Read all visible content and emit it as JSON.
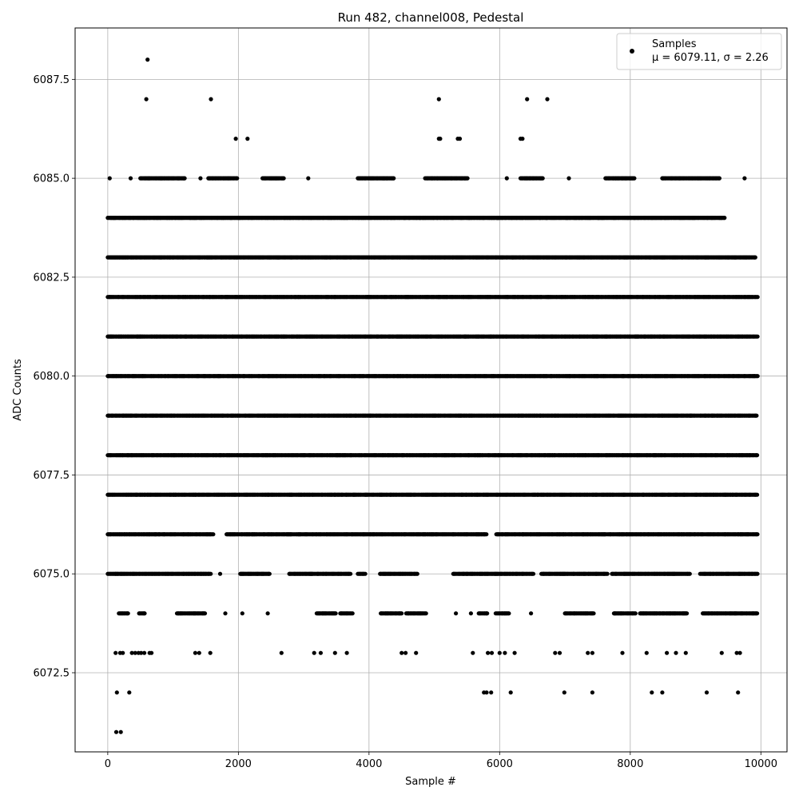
{
  "chart_data": {
    "type": "scatter",
    "title": "Run 482, channel008, Pedestal",
    "xlabel": "Sample #",
    "ylabel": "ADC Counts",
    "xlim": [
      -500,
      10400
    ],
    "ylim": [
      6070.5,
      6088.8
    ],
    "xticks": [
      0,
      2000,
      4000,
      6000,
      8000,
      10000
    ],
    "xtick_labels": [
      "0",
      "2000",
      "4000",
      "6000",
      "8000",
      "10000"
    ],
    "yticks": [
      6072.5,
      6075.0,
      6077.5,
      6080.0,
      6082.5,
      6085.0,
      6087.5
    ],
    "ytick_labels": [
      "6072.5",
      "6075.0",
      "6077.5",
      "6080.0",
      "6082.5",
      "6085.0",
      "6087.5"
    ],
    "grid": true,
    "legend_position": "top-right",
    "marker_color": "#000000",
    "series": [
      {
        "name": "Samples",
        "stats_label": "μ = 6079.11, σ = 2.26",
        "x_range": [
          0,
          9930
        ],
        "level_coverage": [
          {
            "y": 6071,
            "x": [
              130,
              200
            ]
          },
          {
            "y": 6072,
            "x": [
              140,
              330,
              5760,
              5800,
              5870,
              6170,
              6990,
              7420,
              8330,
              8490,
              9170,
              9650
            ]
          },
          {
            "y": 6073,
            "x": [
              120,
              190,
              230,
              370,
              420,
              470,
              510,
              560,
              640,
              670,
              1340,
              1400,
              1570,
              2660,
              3160,
              3260,
              3480,
              3660,
              4500,
              4560,
              4720,
              5590,
              5820,
              5880,
              6000,
              6080,
              6230,
              6850,
              6920,
              7350,
              7420,
              7880,
              8250,
              8560,
              8700,
              8850,
              9400,
              9630,
              9680
            ]
          },
          {
            "y": 6074,
            "x": [
              [
                170,
                320
              ],
              [
                480,
                580
              ],
              [
                1060,
                1500
              ],
              1800,
              2060,
              2450,
              [
                3200,
                3500
              ],
              [
                3560,
                3760
              ],
              [
                4180,
                4500
              ],
              [
                4570,
                4880
              ],
              5330,
              5560,
              [
                5680,
                5820
              ],
              [
                5940,
                6150
              ],
              6480,
              [
                7000,
                7450
              ],
              [
                7750,
                8080
              ],
              [
                8150,
                8880
              ],
              [
                9110,
                9950
              ]
            ]
          },
          {
            "y": 6075,
            "x": [
              [
                0,
                1580
              ],
              1720,
              [
                2030,
                2480
              ],
              [
                2780,
                3720
              ],
              [
                3830,
                3950
              ],
              [
                4170,
                4750
              ],
              [
                5290,
                6520
              ],
              [
                6640,
                7650
              ],
              [
                7720,
                8920
              ],
              [
                9070,
                9950
              ]
            ]
          },
          {
            "y": 6076,
            "x": [
              [
                0,
                1620
              ],
              [
                1820,
                5800
              ],
              [
                5950,
                9950
              ]
            ]
          },
          {
            "y": 6077,
            "x": [
              [
                0,
                9950
              ]
            ]
          },
          {
            "y": 6078,
            "x": [
              [
                0,
                9950
              ]
            ]
          },
          {
            "y": 6079,
            "x": [
              [
                0,
                9950
              ]
            ]
          },
          {
            "y": 6080,
            "x": [
              [
                0,
                9950
              ]
            ]
          },
          {
            "y": 6081,
            "x": [
              [
                0,
                9950
              ]
            ]
          },
          {
            "y": 6082,
            "x": [
              [
                0,
                9950
              ]
            ]
          },
          {
            "y": 6083,
            "x": [
              [
                0,
                9930
              ]
            ]
          },
          {
            "y": 6084,
            "x": [
              [
                0,
                9450
              ]
            ]
          },
          {
            "y": 6085,
            "x": [
              30,
              350,
              [
                500,
                1180
              ],
              1420,
              [
                1540,
                1980
              ],
              [
                2370,
                2700
              ],
              3070,
              [
                3830,
                4380
              ],
              [
                4860,
                5520
              ],
              6110,
              [
                6320,
                6670
              ],
              7060,
              [
                7620,
                8070
              ],
              [
                8490,
                9370
              ],
              9750
            ]
          },
          {
            "y": 6086,
            "x": [
              1960,
              2140,
              5070,
              5090,
              5360,
              5390,
              6320,
              6350
            ]
          },
          {
            "y": 6087,
            "x": [
              590,
              1580,
              5070,
              6420,
              6730
            ]
          },
          {
            "y": 6088,
            "x": [
              610
            ]
          }
        ]
      }
    ]
  }
}
